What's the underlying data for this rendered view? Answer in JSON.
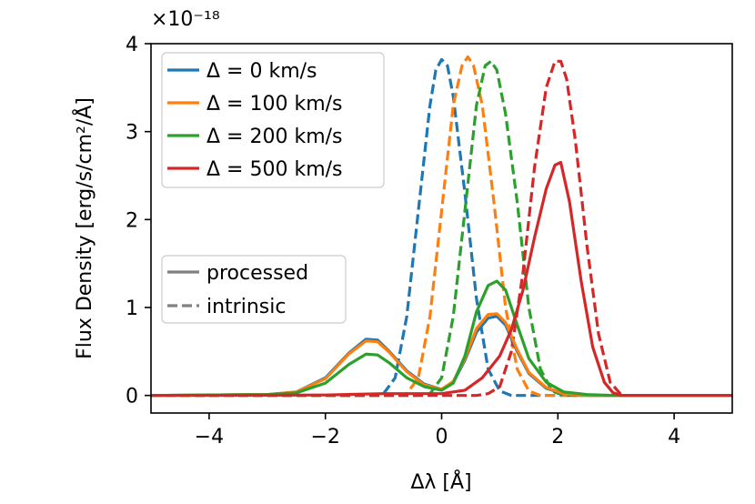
{
  "chart_data": {
    "type": "line",
    "title": "",
    "xlabel": "Δλ [Å]",
    "ylabel": "Flux Density [erg/s/cm²/Å]",
    "y_multiplier": "×10⁻¹⁸",
    "xlim": [
      -5,
      5
    ],
    "ylim": [
      -0.2,
      4.0
    ],
    "x_ticks": [
      -4,
      -2,
      0,
      2,
      4
    ],
    "x_tick_labels": [
      "−4",
      "−2",
      "0",
      "2",
      "4"
    ],
    "y_ticks": [
      0,
      1,
      2,
      3,
      4
    ],
    "y_tick_labels": [
      "0",
      "1",
      "2",
      "3",
      "4"
    ],
    "grid": false,
    "legend_series": [
      {
        "label": "Δ = 0 km/s",
        "color": "#1f77b4"
      },
      {
        "label": "Δ = 100 km/s",
        "color": "#ff7f0e"
      },
      {
        "label": "Δ = 200 km/s",
        "color": "#2ca02c"
      },
      {
        "label": "Δ = 500 km/s",
        "color": "#d62728"
      }
    ],
    "legend_styles": [
      {
        "label": "processed",
        "dash": "solid",
        "color": "#808080"
      },
      {
        "label": "intrinsic",
        "dash": "dashed",
        "color": "#808080"
      }
    ],
    "series": [
      {
        "name": "Δ = 0 km/s intrinsic",
        "color": "#1f77b4",
        "dash": "dashed",
        "x": [
          -5,
          -1.2,
          -1.0,
          -0.8,
          -0.6,
          -0.4,
          -0.2,
          -0.1,
          0,
          0.1,
          0.2,
          0.4,
          0.6,
          0.8,
          1.0,
          1.2,
          5
        ],
        "y": [
          0,
          0,
          0.02,
          0.2,
          0.9,
          2.1,
          3.3,
          3.7,
          3.82,
          3.75,
          3.4,
          2.3,
          1.1,
          0.3,
          0.05,
          0,
          0
        ]
      },
      {
        "name": "Δ = 100 km/s intrinsic",
        "color": "#ff7f0e",
        "dash": "dashed",
        "x": [
          -5,
          -0.8,
          -0.6,
          -0.4,
          -0.2,
          0,
          0.2,
          0.35,
          0.45,
          0.55,
          0.7,
          0.9,
          1.1,
          1.3,
          1.5,
          1.7,
          5
        ],
        "y": [
          0,
          0,
          0.02,
          0.2,
          0.9,
          2.1,
          3.3,
          3.75,
          3.85,
          3.75,
          3.3,
          2.2,
          1.0,
          0.3,
          0.05,
          0,
          0
        ]
      },
      {
        "name": "Δ = 200 km/s intrinsic",
        "color": "#2ca02c",
        "dash": "dashed",
        "x": [
          -5,
          -0.4,
          -0.2,
          0,
          0.2,
          0.4,
          0.6,
          0.75,
          0.85,
          0.95,
          1.1,
          1.3,
          1.5,
          1.7,
          1.9,
          2.1,
          5
        ],
        "y": [
          0,
          0,
          0.02,
          0.2,
          0.9,
          2.1,
          3.3,
          3.75,
          3.8,
          3.7,
          3.2,
          2.2,
          1.0,
          0.3,
          0.05,
          0,
          0
        ]
      },
      {
        "name": "Δ = 500 km/s intrinsic",
        "color": "#d62728",
        "dash": "dashed",
        "x": [
          -5,
          0.6,
          0.8,
          1.0,
          1.2,
          1.4,
          1.6,
          1.8,
          1.95,
          2.05,
          2.15,
          2.3,
          2.5,
          2.7,
          2.9,
          3.1,
          5
        ],
        "y": [
          0,
          0,
          0.02,
          0.1,
          0.5,
          1.4,
          2.6,
          3.5,
          3.8,
          3.8,
          3.6,
          2.9,
          1.7,
          0.7,
          0.15,
          0,
          0
        ]
      },
      {
        "name": "Δ = 0 km/s processed",
        "color": "#1f77b4",
        "dash": "solid",
        "x": [
          -5,
          -3.0,
          -2.5,
          -2.0,
          -1.6,
          -1.3,
          -1.1,
          -0.9,
          -0.6,
          -0.3,
          0,
          0.2,
          0.4,
          0.6,
          0.8,
          0.95,
          1.1,
          1.3,
          1.5,
          1.8,
          2.1,
          2.5,
          5
        ],
        "y": [
          0,
          0.01,
          0.04,
          0.2,
          0.48,
          0.64,
          0.63,
          0.5,
          0.28,
          0.13,
          0.07,
          0.15,
          0.4,
          0.72,
          0.88,
          0.9,
          0.8,
          0.5,
          0.25,
          0.08,
          0.02,
          0,
          0
        ]
      },
      {
        "name": "Δ = 100 km/s processed",
        "color": "#ff7f0e",
        "dash": "solid",
        "x": [
          -5,
          -3.0,
          -2.5,
          -2.0,
          -1.6,
          -1.3,
          -1.1,
          -0.9,
          -0.6,
          -0.3,
          0,
          0.2,
          0.4,
          0.6,
          0.8,
          0.95,
          1.1,
          1.3,
          1.5,
          1.8,
          2.1,
          2.5,
          5
        ],
        "y": [
          0,
          0.01,
          0.04,
          0.19,
          0.47,
          0.62,
          0.61,
          0.49,
          0.27,
          0.12,
          0.07,
          0.16,
          0.42,
          0.76,
          0.92,
          0.93,
          0.83,
          0.52,
          0.26,
          0.09,
          0.02,
          0,
          0
        ]
      },
      {
        "name": "Δ = 200 km/s processed",
        "color": "#2ca02c",
        "dash": "solid",
        "x": [
          -5,
          -3.0,
          -2.5,
          -2.0,
          -1.6,
          -1.3,
          -1.1,
          -0.9,
          -0.6,
          -0.3,
          0,
          0.2,
          0.4,
          0.6,
          0.8,
          0.95,
          1.1,
          1.3,
          1.5,
          1.8,
          2.1,
          2.5,
          3.0,
          5
        ],
        "y": [
          0,
          0.01,
          0.03,
          0.14,
          0.35,
          0.47,
          0.46,
          0.37,
          0.2,
          0.1,
          0.06,
          0.14,
          0.45,
          0.95,
          1.25,
          1.3,
          1.2,
          0.8,
          0.42,
          0.15,
          0.04,
          0.01,
          0,
          0
        ]
      },
      {
        "name": "Δ = 500 km/s processed",
        "color": "#d62728",
        "dash": "solid",
        "x": [
          -5,
          -2.0,
          -1.0,
          0,
          0.4,
          0.7,
          1.0,
          1.2,
          1.4,
          1.6,
          1.8,
          1.95,
          2.05,
          2.2,
          2.4,
          2.6,
          2.8,
          2.95,
          3.1,
          5
        ],
        "y": [
          0,
          0.005,
          0.02,
          0.02,
          0.06,
          0.2,
          0.45,
          0.75,
          1.2,
          1.8,
          2.35,
          2.62,
          2.65,
          2.2,
          1.3,
          0.55,
          0.15,
          0.03,
          0,
          0
        ]
      }
    ]
  }
}
